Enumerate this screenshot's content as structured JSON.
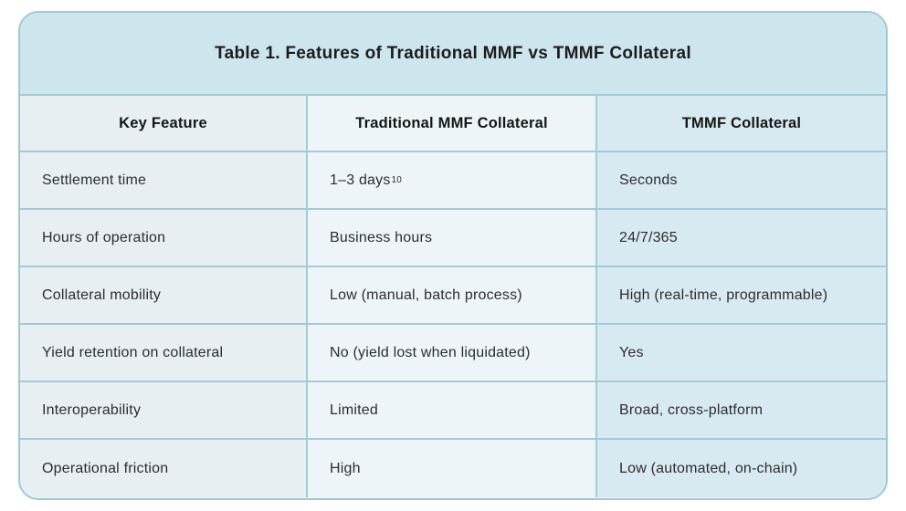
{
  "table": {
    "title": "Table 1. Features of Traditional MMF vs TMMF Collateral",
    "columns": {
      "feature": "Key Feature",
      "traditional": "Traditional MMF Collateral",
      "tmmf": "TMMF Collateral"
    },
    "rows": [
      {
        "feature": "Settlement time",
        "traditional": "1–3 days",
        "traditional_sup": "10",
        "tmmf": "Seconds"
      },
      {
        "feature": "Hours of operation",
        "traditional": "Business hours",
        "tmmf": "24/7/365"
      },
      {
        "feature": "Collateral mobility",
        "traditional": "Low (manual, batch process)",
        "tmmf": "High (real-time, programmable)"
      },
      {
        "feature": "Yield retention on collateral",
        "traditional": "No (yield lost when liquidated)",
        "tmmf": "Yes"
      },
      {
        "feature": "Interoperability",
        "traditional": "Limited",
        "tmmf": "Broad, cross-platform"
      },
      {
        "feature": "Operational friction",
        "traditional": "High",
        "tmmf": "Low (automated, on-chain)"
      }
    ],
    "colors": {
      "card_border": "#9fc8d5",
      "grid_line": "#a2cbd8",
      "title_band_bg": "#cde5ed",
      "col_feature_bg": "#e7eff3",
      "col_traditional_bg": "#eef5f8",
      "col_tmmf_bg": "#d8eaf1"
    }
  }
}
